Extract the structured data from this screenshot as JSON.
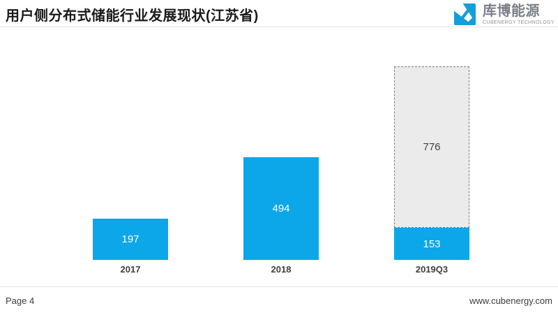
{
  "slide": {
    "title": "用户侧分布式储能行业发展现状(江苏省)",
    "page_label": "Page 4",
    "website": "www.cubenergy.com"
  },
  "logo": {
    "company_cn": "库博能源",
    "company_en": "CUBENERGY TECHNOLOGY",
    "icon": "cubenergy-cube-icon",
    "icon_color": "#149FDB",
    "text_color": "#7A8088"
  },
  "chart_data": {
    "type": "bar",
    "stacked": true,
    "title": "",
    "categories": [
      "2017",
      "2018",
      "2019Q3"
    ],
    "series": [
      {
        "name": "series1",
        "values": [
          197,
          494,
          153
        ],
        "color": "#0BA7E8",
        "border_style": "solid",
        "label_color": "#FFFFFF"
      },
      {
        "name": "series2",
        "values": [
          null,
          null,
          776
        ],
        "color": "#EBEBEB",
        "border_style": "dashed",
        "border_color": "#7F7F7F",
        "label_color": "#404040"
      }
    ],
    "value_labels": true,
    "ylim": [
      0,
      940
    ],
    "grid": false,
    "legend": false,
    "category_label_color": "#404040"
  },
  "colors": {
    "accent_blue": "#0BA7E8",
    "divider": "#E3E3E3",
    "title_text": "#1A1A1A",
    "footer_text": "#3D3D3D"
  }
}
